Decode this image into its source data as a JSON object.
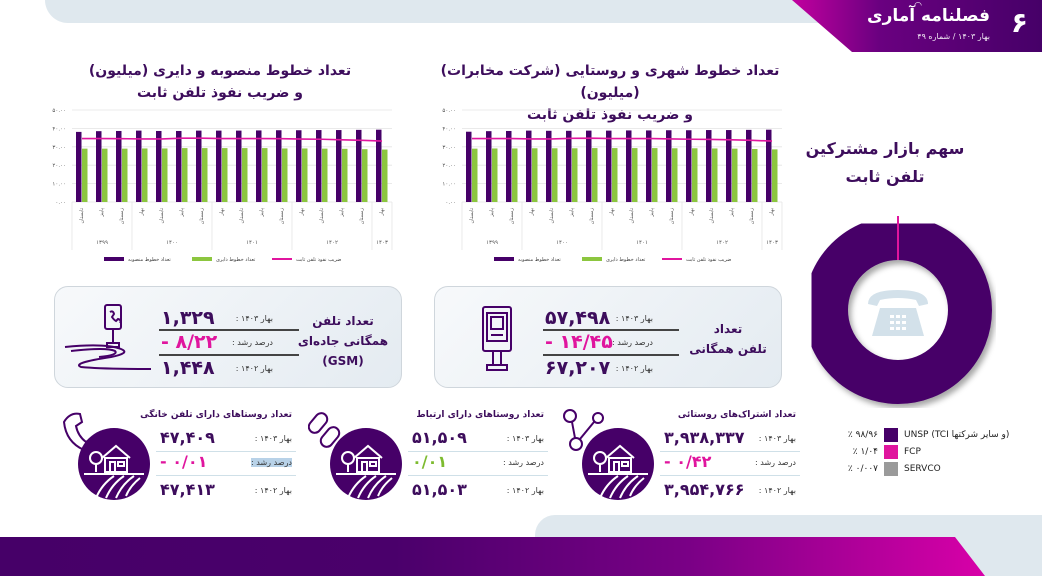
{
  "header": {
    "page_number": "۶",
    "brand_title": "فصلنامه آماری",
    "issue": "بهار ۱۴۰۳ / شماره ۴۹"
  },
  "colors": {
    "purple": "#460068",
    "green": "#8cc63f",
    "magenta": "#e0159e",
    "gray": "#9a9a9a",
    "title": "#3d0d5c"
  },
  "chart_left": {
    "title_line1": "تعداد خطوط منصوبه و دایری (میلیون)",
    "title_line2": "و ضریب نفوذ تلفن ثابت"
  },
  "chart_right": {
    "title_line1": "تعداد خطوط شهری و روستایی (شرکت مخابرات) (میلیون)",
    "title_line2": "و ضریب نفوذ تلفن ثابت"
  },
  "chart_data": [
    {
      "type": "bar",
      "title": "تعداد خطوط شهری و روستایی (شرکت مخابرات) (میلیون) و ضریب نفوذ تلفن ثابت",
      "categories": [
        "تابستان ۱۳۹۹",
        "پاییز ۱۳۹۹",
        "زمستان ۱۳۹۹",
        "بهار ۱۴۰۰",
        "تابستان ۱۴۰۰",
        "پاییز ۱۴۰۰",
        "زمستان ۱۴۰۰",
        "بهار ۱۴۰۱",
        "تابستان ۱۴۰۱",
        "پاییز ۱۴۰۱",
        "زمستان ۱۴۰۱",
        "بهار ۱۴۰۲",
        "تابستان ۱۴۰۲",
        "پاییز ۱۴۰۲",
        "زمستان ۱۴۰۲",
        "بهار ۱۴۰۳"
      ],
      "quarter_labels": [
        "تابستان",
        "پاییز",
        "زمستان",
        "بهار",
        "تابستان",
        "پاییز",
        "زمستان",
        "بهار",
        "تابستان",
        "پاییز",
        "زمستان",
        "بهار",
        "تابستان",
        "پاییز",
        "زمستان",
        "بهار"
      ],
      "year_groups": [
        {
          "label": "۱۳۹۹",
          "span": 3
        },
        {
          "label": "۱۴۰۰",
          "span": 4
        },
        {
          "label": "۱۴۰۱",
          "span": 4
        },
        {
          "label": "۱۴۰۲",
          "span": 4
        },
        {
          "label": "۱۴۰۳",
          "span": 1
        }
      ],
      "series": [
        {
          "name": "تعداد خطوط منصوبه",
          "kind": "bar",
          "values": [
            38.2,
            38.5,
            38.6,
            38.8,
            38.7,
            38.7,
            38.8,
            38.8,
            38.9,
            38.9,
            39.0,
            39.0,
            39.1,
            39.1,
            39.2,
            39.3
          ]
        },
        {
          "name": "تعداد خطوط دایری",
          "kind": "bar",
          "values": [
            29.0,
            29.1,
            29.1,
            29.2,
            29.2,
            29.2,
            29.3,
            29.3,
            29.3,
            29.3,
            29.2,
            29.2,
            29.1,
            29.0,
            28.8,
            28.6
          ]
        },
        {
          "name": "ضریب نفوذ تلفن ثابت",
          "kind": "line",
          "values": [
            34.5,
            34.5,
            34.5,
            34.3,
            34.3,
            34.6,
            34.7,
            34.5,
            34.5,
            34.5,
            34.3,
            34.1,
            34.0,
            33.8,
            33.5,
            33.1
          ]
        }
      ],
      "y_ticks": [
        "۰.۰۰",
        "۱۰.۰۰",
        "۲۰.۰۰",
        "۳۰.۰۰",
        "۴۰.۰۰",
        "۵۰.۰۰"
      ],
      "ylim": [
        0,
        50
      ],
      "grid": true,
      "legend_position": "bottom"
    },
    {
      "type": "bar",
      "title": "تعداد خطوط منصوبه و دایری (میلیون) و ضریب نفوذ تلفن ثابت",
      "categories": [
        "تابستان ۱۳۹۹",
        "پاییز ۱۳۹۹",
        "زمستان ۱۳۹۹",
        "بهار ۱۴۰۰",
        "تابستان ۱۴۰۰",
        "پاییز ۱۴۰۰",
        "زمستان ۱۴۰۰",
        "بهار ۱۴۰۱",
        "تابستان ۱۴۰۱",
        "پاییز ۱۴۰۱",
        "زمستان ۱۴۰۱",
        "بهار ۱۴۰۲",
        "تابستان ۱۴۰۲",
        "پاییز ۱۴۰۲",
        "زمستان ۱۴۰۲",
        "بهار ۱۴۰۳"
      ],
      "quarter_labels": [
        "تابستان",
        "پاییز",
        "زمستان",
        "بهار",
        "تابستان",
        "پاییز",
        "زمستان",
        "بهار",
        "تابستان",
        "پاییز",
        "زمستان",
        "بهار",
        "تابستان",
        "پاییز",
        "زمستان",
        "بهار"
      ],
      "year_groups": [
        {
          "label": "۱۳۹۹",
          "span": 3
        },
        {
          "label": "۱۴۰۰",
          "span": 4
        },
        {
          "label": "۱۴۰۱",
          "span": 4
        },
        {
          "label": "۱۴۰۲",
          "span": 4
        },
        {
          "label": "۱۴۰۳",
          "span": 1
        }
      ],
      "series": [
        {
          "name": "تعداد خطوط منصوبه",
          "kind": "bar",
          "values": [
            38.1,
            38.5,
            38.6,
            38.8,
            38.6,
            38.6,
            38.8,
            38.8,
            38.8,
            38.9,
            39.0,
            39.0,
            39.1,
            39.1,
            39.2,
            39.3
          ]
        },
        {
          "name": "تعداد خطوط دایری",
          "kind": "bar",
          "values": [
            29.0,
            29.0,
            29.0,
            29.1,
            29.1,
            29.3,
            29.3,
            29.3,
            29.3,
            29.3,
            29.1,
            29.1,
            29.0,
            28.9,
            28.7,
            28.5
          ]
        },
        {
          "name": "ضریب نفوذ تلفن ثابت",
          "kind": "line",
          "values": [
            34.5,
            34.5,
            34.4,
            34.3,
            34.3,
            34.7,
            34.7,
            34.5,
            34.5,
            34.5,
            34.4,
            34.2,
            34.1,
            33.8,
            33.5,
            33.1
          ]
        }
      ],
      "y_ticks": [
        "۰.۰۰",
        "۱۰.۰۰",
        "۲۰.۰۰",
        "۳۰.۰۰",
        "۴۰.۰۰",
        "۵۰.۰۰"
      ],
      "ylim": [
        0,
        50
      ],
      "grid": true,
      "legend_position": "bottom"
    },
    {
      "type": "pie",
      "title": "سهم بازار مشترکین تلفن ثابت",
      "categories": [
        "UNSP (TCI و سایر شرکتها)",
        "FCP",
        "SERVCO"
      ],
      "values": [
        98.96,
        1.04,
        0.007
      ],
      "value_labels": [
        "۹۸/۹۶ ٪",
        "۱/۰۴ ٪",
        "۰/۰۰۷ ٪"
      ],
      "colors": [
        "#460068",
        "#e0159e",
        "#9a9a9a"
      ],
      "donut": true
    }
  ],
  "legend": {
    "installed": "تعداد خطوط منصوبه",
    "active": "تعداد خطوط دایری",
    "penetration": "ضریب نفوذ تلفن ثابت"
  },
  "pie": {
    "title_line1": "سهم بازار مشترکین",
    "title_line2": "تلفن ثابت",
    "legend": [
      {
        "label": "UNSP (TCI و سایر شرکتها)",
        "pct": "۹۸/۹۶ ٪",
        "color": "#460068"
      },
      {
        "label": "FCP",
        "pct": "۱/۰۴ ٪",
        "color": "#e0159e"
      },
      {
        "label": "SERVCO",
        "pct": "۰/۰۰۷ ٪",
        "color": "#9a9a9a"
      }
    ]
  },
  "cards": {
    "public_phone": {
      "title_line1": "تعداد",
      "title_line2": "تلفن همگانی",
      "label_current": "بهار ۱۴۰۳ :",
      "value_current": "۵۷,۴۹۸",
      "label_growth": "درصد رشد :",
      "value_growth": "- ۱۴/۴۵",
      "label_prev": "بهار ۱۴۰۲ :",
      "value_prev": "۶۷,۲۰۷"
    },
    "road_gsm": {
      "title_line1": "تعداد تلفن",
      "title_line2": "همگانی جاده‌ای",
      "title_line3": "(GSM)",
      "label_current": "بهار ۱۴۰۳ :",
      "value_current": "۱,۳۲۹",
      "label_growth": "درصد رشد :",
      "value_growth": "- ۸/۲۲",
      "label_prev": "بهار ۱۴۰۲ :",
      "value_prev": "۱,۴۴۸"
    }
  },
  "rural": [
    {
      "title": "تعداد اشتراک‌های روستائی",
      "label_current": "بهار ۱۴۰۳ :",
      "value_current": "۳,۹۳۸,۳۳۷",
      "label_growth": "درصد رشد :",
      "value_growth": "- ۰/۴۲",
      "label_prev": "بهار ۱۴۰۲ :",
      "value_prev": "۳,۹۵۴,۷۶۶"
    },
    {
      "title": "تعداد روستاهای دارای ارتباط",
      "label_current": "بهار ۱۴۰۳ :",
      "value_current": "۵۱,۵۰۹",
      "label_growth": "درصد رشد :",
      "value_growth": "۰/۰۱",
      "label_prev": "بهار ۱۴۰۲ :",
      "value_prev": "۵۱,۵۰۳"
    },
    {
      "title": "تعداد روستاهای دارای تلفن خانگی",
      "label_current": "بهار ۱۴۰۳ :",
      "value_current": "۴۷,۴۰۹",
      "label_growth": "درصد رشد :",
      "value_growth": "- ۰/۰۱",
      "label_prev": "بهار ۱۴۰۲ :",
      "value_prev": "۴۷,۴۱۳"
    }
  ]
}
